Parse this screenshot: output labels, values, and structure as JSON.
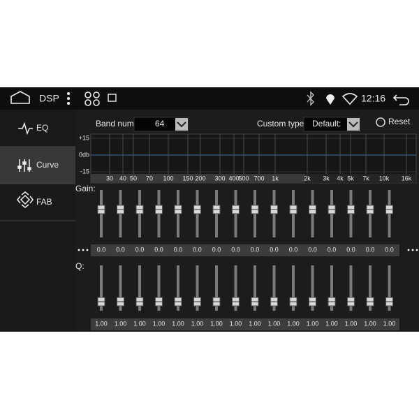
{
  "status_bar": {
    "app_title": "DSP",
    "time": "12:16"
  },
  "sidebar": {
    "items": [
      "EQ",
      "Curve",
      "FAB"
    ]
  },
  "controls": {
    "band_num_label": "Band num:",
    "band_num_value": "64",
    "custom_type_label": "Custom type:",
    "custom_type_value": "Default:",
    "reset": "Reset"
  },
  "graph": {
    "y_labels": [
      "+15",
      "0db",
      "-15"
    ],
    "frequencies": [
      "30",
      "40",
      "50",
      "70",
      "100",
      "150",
      "200",
      "300",
      "400",
      "500",
      "700",
      "1k",
      "2k",
      "3k",
      "4k",
      "5k",
      "7k",
      "10k",
      "16k"
    ]
  },
  "gain": {
    "label": "Gain:",
    "values": [
      "0.0",
      "0.0",
      "0.0",
      "0.0",
      "0.0",
      "0.0",
      "0.0",
      "0.0",
      "0.0",
      "0.0",
      "0.0",
      "0.0",
      "0.0",
      "0.0",
      "0.0",
      "0.0"
    ]
  },
  "q": {
    "label": "Q:",
    "values": [
      "1.00",
      "1.00",
      "1.00",
      "1.00",
      "1.00",
      "1.00",
      "1.00",
      "1.00",
      "1.00",
      "1.00",
      "1.00",
      "1.00",
      "1.00",
      "1.00",
      "1.00",
      "1.00"
    ]
  }
}
